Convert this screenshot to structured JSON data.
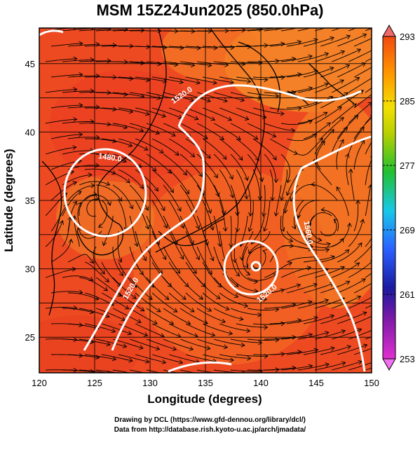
{
  "title": "MSM 15Z24Jun2025 (850.0hPa)",
  "axes": {
    "xlabel": "Longitude (degrees)",
    "ylabel": "Latitude  (degrees)",
    "xticks": [
      "120",
      "125",
      "130",
      "135",
      "140",
      "145",
      "150"
    ],
    "yticks": [
      "45",
      "40",
      "35",
      "30",
      "25"
    ],
    "xlim": [
      120,
      150
    ],
    "ylim": [
      22.4,
      47.6
    ]
  },
  "colorbar": {
    "labels": [
      "293",
      "285",
      "277",
      "269",
      "261",
      "253"
    ],
    "range": [
      253,
      293
    ],
    "colors": [
      "#d81ccc",
      "#1a1aa0",
      "#2a60ff",
      "#19c8e8",
      "#22c030",
      "#b8d000",
      "#f3e000",
      "#ff9a00",
      "#f24a10"
    ]
  },
  "contours": [
    {
      "label": "1520.0"
    },
    {
      "label": "1480.0"
    },
    {
      "label": "1520.0"
    },
    {
      "label": "1560.0"
    },
    {
      "label": "1520.0"
    }
  ],
  "footer": {
    "line1": "Drawing by DCL (https://www.gfd-dennou.org/library/dcl/)",
    "line2": "Data from http://database.rish.kyoto-u.ac.jp/arch/jmadata/"
  }
}
